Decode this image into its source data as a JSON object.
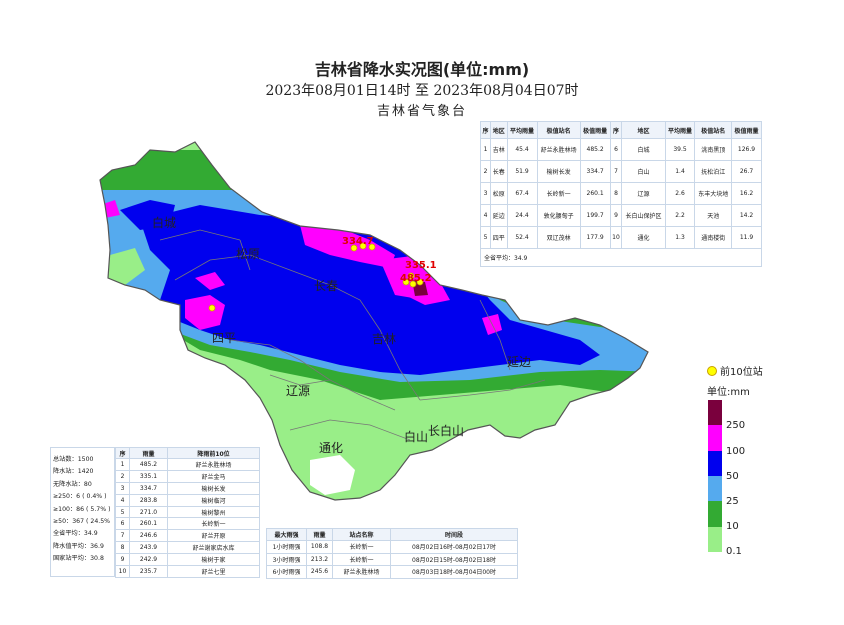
{
  "header": {
    "title": "吉林省降水实况图(单位:mm)",
    "period": "2023年08月01日14时 至 2023年08月04日07时",
    "org": "吉林省气象台"
  },
  "map": {
    "region_labels": [
      "白城",
      "松原",
      "长春",
      "四平",
      "吉林",
      "延边",
      "辽源",
      "通化",
      "白山",
      "长白山"
    ],
    "top_station_values": [
      "334.7",
      "335.1",
      "485.2"
    ]
  },
  "region_table": {
    "headers": [
      "序",
      "地区",
      "平均雨量",
      "极值站名",
      "极值雨量",
      "序",
      "地区",
      "平均雨量",
      "极值站名",
      "极值雨量"
    ],
    "rows": [
      [
        "1",
        "吉林",
        "45.4",
        "舒兰永胜林场",
        "485.2",
        "6",
        "白城",
        "39.5",
        "洮南黑顶",
        "126.9"
      ],
      [
        "2",
        "长春",
        "51.9",
        "榆树长发",
        "334.7",
        "7",
        "白山",
        "1.4",
        "抚松泊江",
        "26.7"
      ],
      [
        "3",
        "松原",
        "67.4",
        "长岭新一",
        "260.1",
        "8",
        "辽源",
        "2.6",
        "东丰大块地",
        "16.2"
      ],
      [
        "4",
        "延边",
        "24.4",
        "敦化腰甸子",
        "199.7",
        "9",
        "长白山保护区",
        "2.2",
        "天池",
        "14.2"
      ],
      [
        "5",
        "四平",
        "52.4",
        "双辽茂林",
        "177.9",
        "10",
        "通化",
        "1.3",
        "通南楼街",
        "11.9"
      ]
    ],
    "avg": "全省平均：34.9"
  },
  "stats": [
    "总站数：1500",
    "降水站：1420",
    "无降水站：80",
    "≥250：6 ( 0.4% )",
    "≥100：86 ( 5.7% )",
    "≥50：367 ( 24.5% )",
    "全省平均：34.9",
    "降水值平均：36.9",
    "国家站平均：30.8"
  ],
  "top10": {
    "headers": [
      "序",
      "雨量",
      "降雨前10位"
    ],
    "rows": [
      [
        "1",
        "485.2",
        "舒兰永胜林场"
      ],
      [
        "2",
        "335.1",
        "舒兰金马"
      ],
      [
        "3",
        "334.7",
        "榆树长发"
      ],
      [
        "4",
        "283.8",
        "榆树临河"
      ],
      [
        "5",
        "271.0",
        "榆树黎州"
      ],
      [
        "6",
        "260.1",
        "长岭新一"
      ],
      [
        "7",
        "246.6",
        "舒兰开原"
      ],
      [
        "8",
        "243.9",
        "舒兰谢家店水库"
      ],
      [
        "9",
        "242.9",
        "榆树于家"
      ],
      [
        "10",
        "235.7",
        "舒兰七里"
      ]
    ]
  },
  "intensity": {
    "headers": [
      "最大雨强",
      "雨量",
      "站点名称",
      "时间段"
    ],
    "rows": [
      [
        "1小时雨强",
        "108.8",
        "长岭新一",
        "08月02日16时-08月02日17时"
      ],
      [
        "3小时雨强",
        "213.2",
        "长岭新一",
        "08月02日15时-08月02日18时"
      ],
      [
        "6小时雨强",
        "245.6",
        "舒兰永胜林场",
        "08月03日18时-08月04日00时"
      ]
    ]
  },
  "legend": {
    "top_label": "前10位站",
    "unit": "单位:mm",
    "ticks": [
      "250",
      "100",
      "50",
      "25",
      "10",
      "0.1"
    ],
    "colors": [
      "#7a003d",
      "#ff00ff",
      "#0000ee",
      "#55aaee",
      "#33aa33",
      "#99ee88"
    ]
  }
}
